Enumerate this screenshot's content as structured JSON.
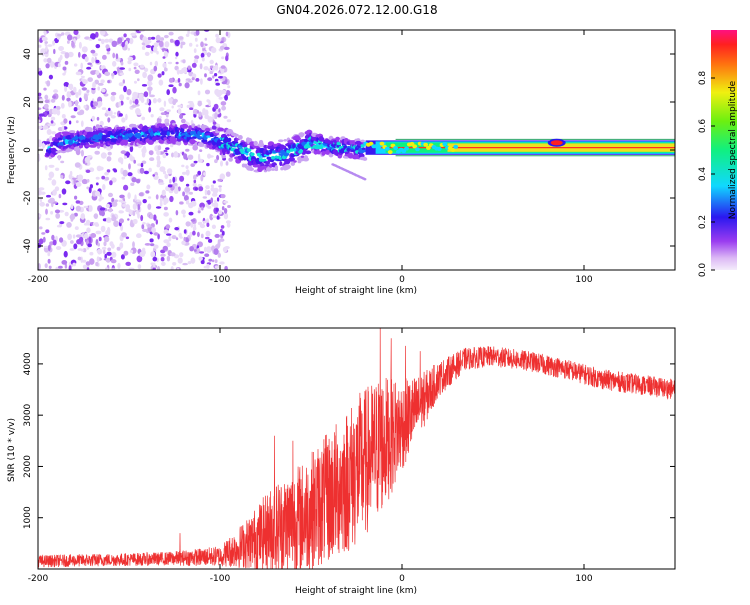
{
  "title": "GN04.2026.072.12.00.G18",
  "colors": {
    "snr_line": "#ee3030",
    "carrier_band": "#2ca56a",
    "background": "#ffffff"
  },
  "chart_data": [
    {
      "type": "heatmap",
      "name": "spectrogram",
      "xlabel": "Height of straight line (km)",
      "ylabel": "Frequency (Hz)",
      "xlim": [
        -200,
        150
      ],
      "ylim": [
        -50,
        50
      ],
      "xticks": [
        -200,
        -100,
        0,
        100
      ],
      "xtick_labels": [
        "-200",
        "-100",
        "0",
        "100"
      ],
      "yticks": [
        -40,
        -20,
        0,
        20,
        40
      ],
      "ytick_labels": [
        "-40",
        "-20",
        "0",
        "20",
        "40"
      ],
      "colorbar": {
        "label": "Normalized spectral amplitude",
        "range": [
          0,
          1
        ],
        "ticks": [
          0.0,
          0.2,
          0.4,
          0.6,
          0.8
        ],
        "tick_labels": [
          "0.0",
          "0.2",
          "0.4",
          "0.6",
          "0.8"
        ]
      },
      "description_points": {
        "noise_region_x": [
          -200,
          -95
        ],
        "ridge": [
          {
            "x": -190,
            "f": 3
          },
          {
            "x": -170,
            "f": 5
          },
          {
            "x": -150,
            "f": 6
          },
          {
            "x": -130,
            "f": 7
          },
          {
            "x": -110,
            "f": 6
          },
          {
            "x": -95,
            "f": 2
          },
          {
            "x": -80,
            "f": -3
          },
          {
            "x": -65,
            "f": -2
          },
          {
            "x": -50,
            "f": 3
          },
          {
            "x": -35,
            "f": 1
          },
          {
            "x": -20,
            "f": 0
          },
          {
            "x": 0,
            "f": 1
          },
          {
            "x": 50,
            "f": 1
          },
          {
            "x": 100,
            "f": 1
          },
          {
            "x": 150,
            "f": 1
          }
        ],
        "strong_carrier_x": [
          -20,
          150
        ],
        "carrier_band_f": [
          -2,
          4
        ]
      }
    },
    {
      "type": "line",
      "name": "snr",
      "xlabel": "Height of straight line (km)",
      "ylabel": "SNR (10 * v/v)",
      "xlim": [
        -200,
        150
      ],
      "ylim": [
        0,
        4700
      ],
      "xticks": [
        -200,
        -100,
        0,
        100
      ],
      "xtick_labels": [
        "-200",
        "-100",
        "0",
        "100"
      ],
      "yticks": [
        1000,
        2000,
        3000,
        4000
      ],
      "ytick_labels": [
        "1000",
        "2000",
        "3000",
        "4000"
      ],
      "envelope": [
        {
          "x": -200,
          "mean": 150,
          "spread": 120
        },
        {
          "x": -130,
          "mean": 200,
          "spread": 130
        },
        {
          "x": -100,
          "mean": 250,
          "spread": 200
        },
        {
          "x": -85,
          "mean": 500,
          "spread": 500
        },
        {
          "x": -70,
          "mean": 800,
          "spread": 900
        },
        {
          "x": -55,
          "mean": 1000,
          "spread": 1100
        },
        {
          "x": -40,
          "mean": 1400,
          "spread": 1300
        },
        {
          "x": -25,
          "mean": 1900,
          "spread": 1500
        },
        {
          "x": -12,
          "mean": 2400,
          "spread": 1400
        },
        {
          "x": 0,
          "mean": 2800,
          "spread": 900
        },
        {
          "x": 10,
          "mean": 3200,
          "spread": 600
        },
        {
          "x": 20,
          "mean": 3700,
          "spread": 350
        },
        {
          "x": 35,
          "mean": 4100,
          "spread": 220
        },
        {
          "x": 50,
          "mean": 4150,
          "spread": 200
        },
        {
          "x": 70,
          "mean": 4050,
          "spread": 200
        },
        {
          "x": 90,
          "mean": 3900,
          "spread": 200
        },
        {
          "x": 110,
          "mean": 3700,
          "spread": 200
        },
        {
          "x": 130,
          "mean": 3600,
          "spread": 200
        },
        {
          "x": 150,
          "mean": 3500,
          "spread": 200
        }
      ],
      "peaks": [
        {
          "x": -12,
          "y": 4700
        },
        {
          "x": -6,
          "y": 4500
        },
        {
          "x": 2,
          "y": 4350
        },
        {
          "x": 10,
          "y": 4250
        },
        {
          "x": -70,
          "y": 2600
        },
        {
          "x": -60,
          "y": 2500
        },
        {
          "x": -122,
          "y": 700
        }
      ]
    }
  ]
}
